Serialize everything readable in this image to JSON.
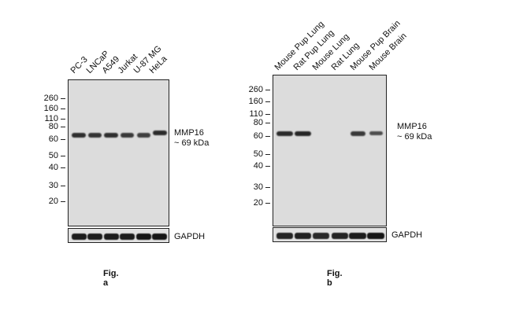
{
  "figures": [
    {
      "caption": "Fig. a",
      "lanes": [
        "PC-3",
        "LNCaP",
        "A549",
        "Jurkat",
        "U-87 MG",
        "HeLa"
      ],
      "markers": [
        "260",
        "160",
        "110",
        "80",
        "60",
        "50",
        "40",
        "30",
        "20"
      ],
      "target_label": "MMP16",
      "target_size": "~ 69 kDa",
      "control_label": "GAPDH",
      "target_band_intensity": [
        0.9,
        0.85,
        0.9,
        0.8,
        0.75,
        0.95
      ],
      "control_band_intensity": [
        0.95,
        0.95,
        0.95,
        0.95,
        1.0,
        1.0
      ]
    },
    {
      "caption": "Fig. b",
      "lanes": [
        "Mouse Pup Lung",
        "Rat Pup Lung",
        "Mouse Lung",
        "Rat Lung",
        "Mouse Pup Brain",
        "Mouse Brain"
      ],
      "markers": [
        "260",
        "160",
        "110",
        "80",
        "60",
        "50",
        "40",
        "30",
        "20"
      ],
      "target_label": "MMP16",
      "target_size": "~ 69 kDa",
      "control_label": "GAPDH",
      "target_band_intensity": [
        0.95,
        1.0,
        0.0,
        0.0,
        0.8,
        0.6
      ],
      "control_band_intensity": [
        0.85,
        0.9,
        0.8,
        0.85,
        0.95,
        1.0
      ]
    }
  ]
}
